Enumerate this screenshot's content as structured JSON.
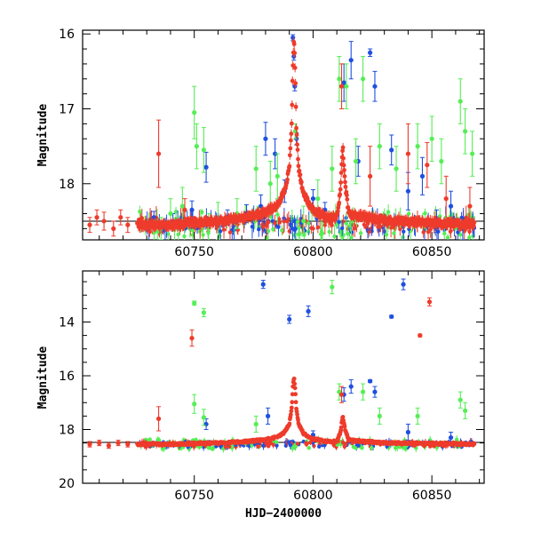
{
  "chart_data": [
    {
      "type": "scatter",
      "panel": "top",
      "title": "",
      "xlabel": "",
      "ylabel": "Magnitude",
      "xlim": [
        60703,
        60872
      ],
      "ylim": [
        18.75,
        15.95
      ],
      "y_inverted": true,
      "xticks": [
        60750,
        60800,
        60850
      ],
      "yticks": [
        16,
        17,
        18
      ],
      "grid": false,
      "reference_line": 18.5,
      "colors": {
        "blue": "#1f4fe0",
        "green": "#55ee55",
        "red": "#ee3b2b"
      },
      "series": [
        {
          "color": "blue",
          "points": [
            {
              "x": 60733,
              "y": 18.45,
              "err": 0.08
            },
            {
              "x": 60741,
              "y": 18.5,
              "err": 0.1
            },
            {
              "x": 60749,
              "y": 18.35,
              "err": 0.12
            },
            {
              "x": 60755,
              "y": 17.78,
              "err": 0.2
            },
            {
              "x": 60764,
              "y": 18.45,
              "err": 0.1
            },
            {
              "x": 60772,
              "y": 18.4,
              "err": 0.12
            },
            {
              "x": 60778,
              "y": 18.3,
              "err": 0.15
            },
            {
              "x": 60780,
              "y": 17.4,
              "err": 0.22
            },
            {
              "x": 60784,
              "y": 17.6,
              "err": 0.2
            },
            {
              "x": 60788,
              "y": 18.1,
              "err": 0.15
            },
            {
              "x": 60791.5,
              "y": 16.05,
              "err": 0.04
            },
            {
              "x": 60791.9,
              "y": 16.3,
              "err": 0.05
            },
            {
              "x": 60792.3,
              "y": 16.7,
              "err": 0.06
            },
            {
              "x": 60793,
              "y": 17.4,
              "err": 0.08
            },
            {
              "x": 60800,
              "y": 18.2,
              "err": 0.12
            },
            {
              "x": 60805,
              "y": 18.35,
              "err": 0.1
            },
            {
              "x": 60813,
              "y": 16.65,
              "err": 0.25
            },
            {
              "x": 60816,
              "y": 16.35,
              "err": 0.25
            },
            {
              "x": 60819,
              "y": 17.7,
              "err": 0.2
            },
            {
              "x": 60824,
              "y": 16.25,
              "err": 0.05
            },
            {
              "x": 60826,
              "y": 16.7,
              "err": 0.2
            },
            {
              "x": 60833,
              "y": 17.55,
              "err": 0.2
            },
            {
              "x": 60840,
              "y": 18.1,
              "err": 0.25
            },
            {
              "x": 60846,
              "y": 17.9,
              "err": 0.25
            },
            {
              "x": 60852,
              "y": 18.5,
              "err": 0.15
            },
            {
              "x": 60858,
              "y": 18.3,
              "err": 0.2
            },
            {
              "x": 60863,
              "y": 18.6,
              "err": 0.15
            }
          ]
        },
        {
          "color": "green",
          "points": [
            {
              "x": 60736,
              "y": 18.6,
              "err": 0.15
            },
            {
              "x": 60740,
              "y": 18.4,
              "err": 0.2
            },
            {
              "x": 60745,
              "y": 18.3,
              "err": 0.25
            },
            {
              "x": 60750,
              "y": 17.05,
              "err": 0.35
            },
            {
              "x": 60751,
              "y": 17.5,
              "err": 0.3
            },
            {
              "x": 60754,
              "y": 17.55,
              "err": 0.3
            },
            {
              "x": 60756,
              "y": 18.6,
              "err": 0.2
            },
            {
              "x": 60760,
              "y": 18.5,
              "err": 0.25
            },
            {
              "x": 60768,
              "y": 18.4,
              "err": 0.2
            },
            {
              "x": 60776,
              "y": 17.8,
              "err": 0.3
            },
            {
              "x": 60782,
              "y": 18.0,
              "err": 0.3
            },
            {
              "x": 60785,
              "y": 17.9,
              "err": 0.3
            },
            {
              "x": 60792.5,
              "y": 17.3,
              "err": 0.1
            },
            {
              "x": 60796,
              "y": 18.5,
              "err": 0.2
            },
            {
              "x": 60802,
              "y": 18.2,
              "err": 0.25
            },
            {
              "x": 60808,
              "y": 17.8,
              "err": 0.3
            },
            {
              "x": 60811,
              "y": 16.6,
              "err": 0.3
            },
            {
              "x": 60814,
              "y": 16.7,
              "err": 0.3
            },
            {
              "x": 60818,
              "y": 17.7,
              "err": 0.3
            },
            {
              "x": 60821,
              "y": 16.6,
              "err": 0.3
            },
            {
              "x": 60828,
              "y": 17.5,
              "err": 0.3
            },
            {
              "x": 60835,
              "y": 17.8,
              "err": 0.3
            },
            {
              "x": 60844,
              "y": 17.5,
              "err": 0.3
            },
            {
              "x": 60850,
              "y": 17.4,
              "err": 0.3
            },
            {
              "x": 60854,
              "y": 17.7,
              "err": 0.3
            },
            {
              "x": 60862,
              "y": 16.9,
              "err": 0.3
            },
            {
              "x": 60864,
              "y": 17.3,
              "err": 0.3
            },
            {
              "x": 60867,
              "y": 17.6,
              "err": 0.3
            }
          ]
        },
        {
          "color": "red",
          "points": [
            {
              "x": 60706,
              "y": 18.55,
              "err": 0.1
            },
            {
              "x": 60709,
              "y": 18.45,
              "err": 0.1
            },
            {
              "x": 60712,
              "y": 18.5,
              "err": 0.12
            },
            {
              "x": 60716,
              "y": 18.6,
              "err": 0.1
            },
            {
              "x": 60719,
              "y": 18.45,
              "err": 0.1
            },
            {
              "x": 60722,
              "y": 18.55,
              "err": 0.1
            },
            {
              "x": 60735,
              "y": 17.6,
              "err": 0.45
            },
            {
              "x": 60746,
              "y": 18.35,
              "err": 0.15
            },
            {
              "x": 60812,
              "y": 16.7,
              "err": 0.3
            },
            {
              "x": 60824,
              "y": 17.9,
              "err": 0.4
            },
            {
              "x": 60840,
              "y": 17.6,
              "err": 0.4
            },
            {
              "x": 60848,
              "y": 17.75,
              "err": 0.3
            },
            {
              "x": 60856,
              "y": 18.2,
              "err": 0.3
            },
            {
              "x": 60866,
              "y": 18.3,
              "err": 0.25
            }
          ],
          "outburst_curve": [
            [
              60726,
              18.55
            ],
            [
              60740,
              18.55
            ],
            [
              60760,
              18.5
            ],
            [
              60772,
              18.45
            ],
            [
              60780,
              18.38
            ],
            [
              60785,
              18.28
            ],
            [
              60788,
              18.1
            ],
            [
              60790,
              17.8
            ],
            [
              60791,
              17.2
            ],
            [
              60791.5,
              16.4
            ],
            [
              60792,
              16.05
            ],
            [
              60792.5,
              16.5
            ],
            [
              60793,
              17.3
            ],
            [
              60794,
              17.8
            ],
            [
              60796,
              18.15
            ],
            [
              60800,
              18.35
            ],
            [
              60806,
              18.45
            ],
            [
              60810,
              18.45
            ],
            [
              60811.5,
              18.1
            ],
            [
              60812.5,
              17.5
            ],
            [
              60813.5,
              18.0
            ],
            [
              60815,
              18.4
            ],
            [
              60830,
              18.5
            ],
            [
              60850,
              18.52
            ],
            [
              60868,
              18.55
            ]
          ]
        }
      ]
    },
    {
      "type": "scatter",
      "panel": "bottom",
      "title": "",
      "xlabel": "HJD−2400000",
      "ylabel": "Magnitude",
      "xlim": [
        60703,
        60872
      ],
      "ylim": [
        20.0,
        12.1
      ],
      "y_inverted": true,
      "xticks": [
        60750,
        60800,
        60850
      ],
      "yticks": [
        14,
        16,
        18,
        20
      ],
      "grid": false,
      "reference_line": 18.5,
      "colors": {
        "blue": "#1f4fe0",
        "green": "#55ee55",
        "red": "#ee3b2b"
      },
      "series": [
        {
          "color": "blue",
          "points": [
            {
              "x": 60779,
              "y": 12.6,
              "err": 0.15
            },
            {
              "x": 60790,
              "y": 13.9,
              "err": 0.15
            },
            {
              "x": 60798,
              "y": 13.6,
              "err": 0.2
            },
            {
              "x": 60833,
              "y": 13.8,
              "err": 0.05
            },
            {
              "x": 60838,
              "y": 12.6,
              "err": 0.2
            },
            {
              "x": 60824,
              "y": 16.2,
              "err": 0.05
            },
            {
              "x": 60826,
              "y": 16.6,
              "err": 0.2
            },
            {
              "x": 60816,
              "y": 16.4,
              "err": 0.25
            },
            {
              "x": 60813,
              "y": 16.7,
              "err": 0.25
            },
            {
              "x": 60781,
              "y": 17.5,
              "err": 0.3
            },
            {
              "x": 60755,
              "y": 17.8,
              "err": 0.2
            },
            {
              "x": 60800,
              "y": 18.2,
              "err": 0.15
            },
            {
              "x": 60840,
              "y": 18.1,
              "err": 0.3
            },
            {
              "x": 60858,
              "y": 18.3,
              "err": 0.2
            }
          ]
        },
        {
          "color": "green",
          "points": [
            {
              "x": 60750,
              "y": 13.3,
              "err": 0.08
            },
            {
              "x": 60754,
              "y": 13.65,
              "err": 0.15
            },
            {
              "x": 60808,
              "y": 12.7,
              "err": 0.25
            },
            {
              "x": 60750,
              "y": 17.05,
              "err": 0.35
            },
            {
              "x": 60754,
              "y": 17.55,
              "err": 0.3
            },
            {
              "x": 60776,
              "y": 17.8,
              "err": 0.3
            },
            {
              "x": 60811,
              "y": 16.6,
              "err": 0.3
            },
            {
              "x": 60821,
              "y": 16.6,
              "err": 0.3
            },
            {
              "x": 60828,
              "y": 17.5,
              "err": 0.3
            },
            {
              "x": 60844,
              "y": 17.5,
              "err": 0.3
            },
            {
              "x": 60862,
              "y": 16.9,
              "err": 0.3
            },
            {
              "x": 60864,
              "y": 17.3,
              "err": 0.3
            }
          ]
        },
        {
          "color": "red",
          "points": [
            {
              "x": 60749,
              "y": 14.6,
              "err": 0.3
            },
            {
              "x": 60735,
              "y": 17.6,
              "err": 0.45
            },
            {
              "x": 60845,
              "y": 14.5,
              "err": 0.05
            },
            {
              "x": 60849,
              "y": 13.25,
              "err": 0.15
            },
            {
              "x": 60706,
              "y": 18.55,
              "err": 0.1
            },
            {
              "x": 60710,
              "y": 18.5,
              "err": 0.1
            },
            {
              "x": 60714,
              "y": 18.6,
              "err": 0.1
            },
            {
              "x": 60718,
              "y": 18.5,
              "err": 0.1
            },
            {
              "x": 60722,
              "y": 18.55,
              "err": 0.1
            },
            {
              "x": 60812,
              "y": 16.7,
              "err": 0.3
            }
          ],
          "outburst_curve": [
            [
              60726,
              18.55
            ],
            [
              60740,
              18.55
            ],
            [
              60760,
              18.5
            ],
            [
              60772,
              18.45
            ],
            [
              60780,
              18.38
            ],
            [
              60785,
              18.28
            ],
            [
              60788,
              18.1
            ],
            [
              60790,
              17.8
            ],
            [
              60791,
              17.2
            ],
            [
              60791.5,
              16.4
            ],
            [
              60792,
              16.05
            ],
            [
              60792.5,
              16.5
            ],
            [
              60793,
              17.3
            ],
            [
              60794,
              17.8
            ],
            [
              60796,
              18.15
            ],
            [
              60800,
              18.35
            ],
            [
              60806,
              18.45
            ],
            [
              60810,
              18.45
            ],
            [
              60811.5,
              18.1
            ],
            [
              60812.5,
              17.5
            ],
            [
              60813.5,
              18.0
            ],
            [
              60815,
              18.4
            ],
            [
              60830,
              18.5
            ],
            [
              60850,
              18.52
            ],
            [
              60868,
              18.55
            ]
          ]
        }
      ]
    }
  ]
}
